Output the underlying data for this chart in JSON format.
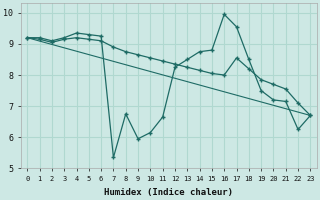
{
  "xlabel": "Humidex (Indice chaleur)",
  "xlim": [
    -0.5,
    23.5
  ],
  "ylim": [
    5,
    10.3
  ],
  "yticks": [
    5,
    6,
    7,
    8,
    9,
    10
  ],
  "xticks": [
    0,
    1,
    2,
    3,
    4,
    5,
    6,
    7,
    8,
    9,
    10,
    11,
    12,
    13,
    14,
    15,
    16,
    17,
    18,
    19,
    20,
    21,
    22,
    23
  ],
  "bg_color": "#cde8e4",
  "line_color": "#1e6b65",
  "grid_color": "#b0d8d0",
  "line1": {
    "x": [
      0,
      1,
      2,
      3,
      4,
      5,
      6,
      7,
      8,
      9,
      10,
      11,
      12,
      13,
      14,
      15,
      16,
      17,
      18,
      19,
      20,
      21,
      22,
      23
    ],
    "y": [
      9.2,
      9.2,
      9.1,
      9.2,
      9.35,
      9.3,
      9.25,
      5.35,
      6.75,
      5.95,
      6.15,
      6.65,
      8.25,
      8.5,
      8.75,
      8.8,
      9.95,
      9.55,
      8.5,
      7.5,
      7.2,
      7.15,
      6.25,
      6.7
    ]
  },
  "line2": {
    "x": [
      0,
      1,
      2,
      3,
      4,
      5,
      6,
      7,
      8,
      9,
      10,
      11,
      12,
      13,
      14,
      15,
      16,
      17,
      18,
      19,
      20,
      21,
      22,
      23
    ],
    "y": [
      9.2,
      9.15,
      9.05,
      9.15,
      9.2,
      9.15,
      9.1,
      8.9,
      8.75,
      8.65,
      8.55,
      8.45,
      8.35,
      8.25,
      8.15,
      8.05,
      8.0,
      8.55,
      8.2,
      7.85,
      7.7,
      7.55,
      7.1,
      6.7
    ]
  },
  "line3": {
    "x": [
      0,
      23
    ],
    "y": [
      9.2,
      6.7
    ]
  }
}
